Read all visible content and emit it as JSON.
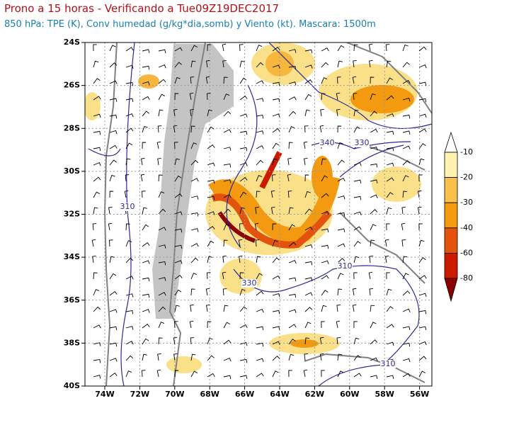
{
  "header": {
    "title": "Prono a 15 horas - Verificando a Tue09Z19DEC2017",
    "subtitle": "850 hPa: TPE (K), Conv humedad (g/kg*dia,somb) y Viento (kt). Mascara: 1500m"
  },
  "map": {
    "lat_labels": [
      "24S",
      "26S",
      "28S",
      "30S",
      "32S",
      "34S",
      "36S",
      "38S",
      "40S"
    ],
    "lon_labels": [
      "74W",
      "72W",
      "70W",
      "68W",
      "66W",
      "64W",
      "62W",
      "60W",
      "58W",
      "56W"
    ],
    "contour_labels": [
      "340",
      "330",
      "310",
      "310",
      "330",
      "310"
    ]
  },
  "colorbar": {
    "labels": [
      "-10",
      "-20",
      "-30",
      "-40",
      "-60",
      "-80"
    ]
  }
}
